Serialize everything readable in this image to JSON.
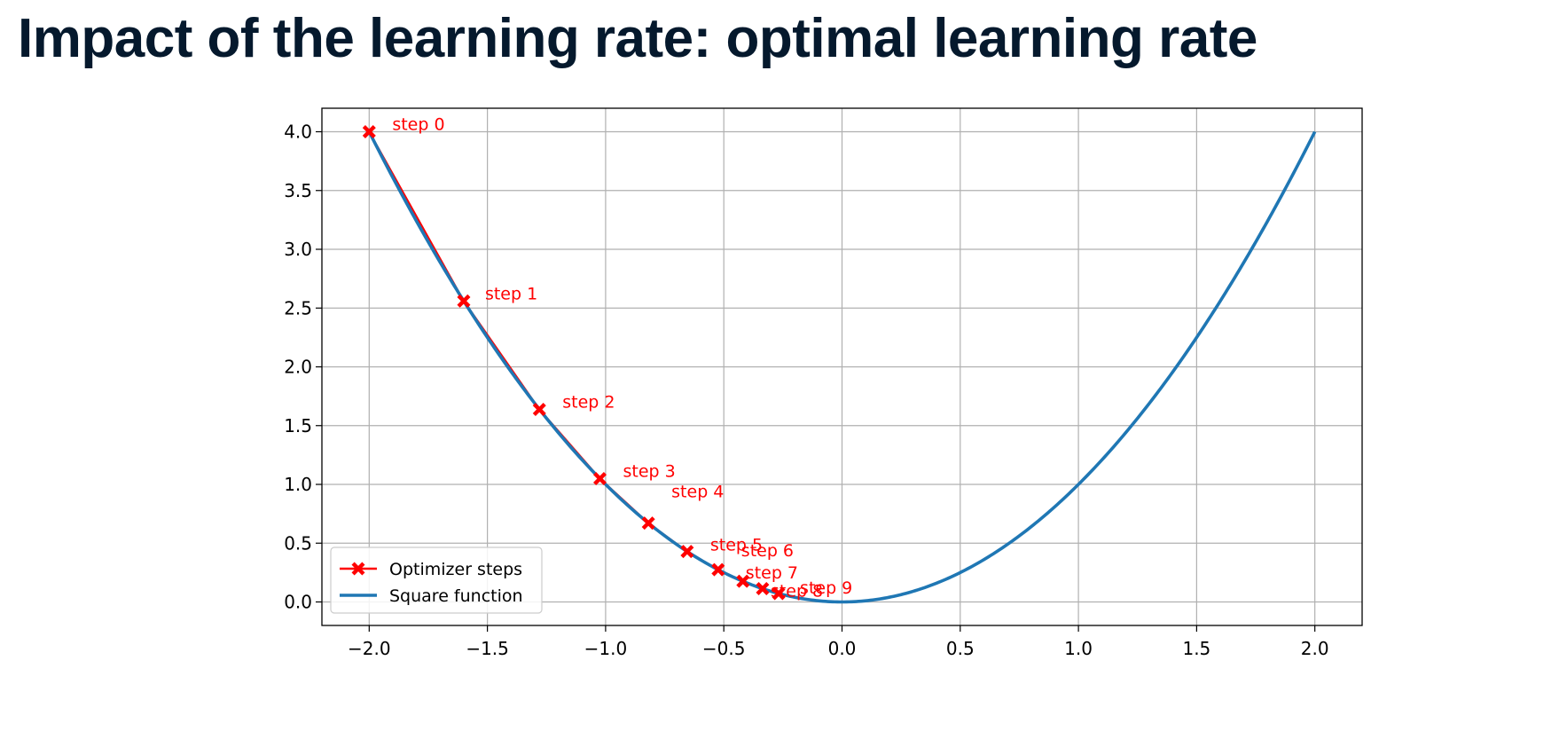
{
  "slide": {
    "title": "Impact of the learning rate: optimal learning rate"
  },
  "chart_data": {
    "type": "line",
    "title": "",
    "xlabel": "",
    "ylabel": "",
    "xlim": [
      -2.2,
      2.2
    ],
    "ylim": [
      -0.2,
      4.2
    ],
    "grid": true,
    "legend_position": "lower-left",
    "x_ticks": [
      "−2.0",
      "−1.5",
      "−1.0",
      "−0.5",
      "0.0",
      "0.5",
      "1.0",
      "1.5",
      "2.0"
    ],
    "y_ticks": [
      "0.0",
      "0.5",
      "1.0",
      "1.5",
      "2.0",
      "2.5",
      "3.0",
      "3.5",
      "4.0"
    ],
    "series": [
      {
        "name": "Optimizer steps",
        "color": "#ff0000",
        "marker": "X",
        "x": [
          -2.0,
          -1.6,
          -1.28,
          -1.024,
          -0.819,
          -0.655,
          -0.524,
          -0.419,
          -0.336,
          -0.268
        ],
        "y": [
          4.0,
          2.56,
          1.638,
          1.049,
          0.671,
          0.429,
          0.275,
          0.176,
          0.113,
          0.072
        ]
      },
      {
        "name": "Square function",
        "color": "#1f77b4",
        "function": "x^2",
        "x_range": [
          -2.0,
          2.0
        ]
      }
    ],
    "annotations": [
      "step 0",
      "step 1",
      "step 2",
      "step 3",
      "step 4",
      "step 5",
      "step 6",
      "step 7",
      "step 8",
      "step 9"
    ]
  }
}
